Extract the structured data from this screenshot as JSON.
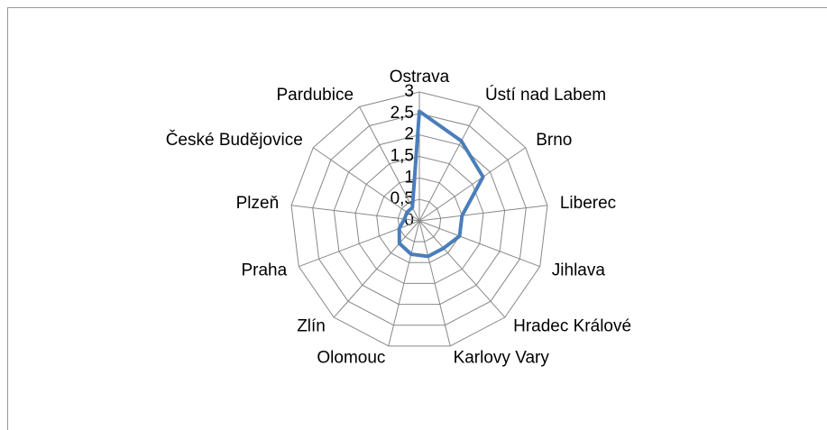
{
  "chart_data": {
    "type": "radar",
    "categories": [
      "Ostrava",
      "Ústí nad Labem",
      "Brno",
      "Liberec",
      "Jihlava",
      "Hradec Králové",
      "Karlovy Vary",
      "Olomouc",
      "Zlín",
      "Praha",
      "Plzeň",
      "České Budějovice",
      "Pardubice"
    ],
    "values": [
      2.55,
      2.1,
      1.8,
      1.0,
      1.0,
      0.85,
      0.85,
      0.8,
      0.7,
      0.5,
      0.35,
      0.35,
      0.35
    ],
    "color": "#4a7ebb",
    "ylim": [
      0,
      3
    ],
    "yticks": [
      0,
      {
        "value": 0.5,
        "label": "0,5"
      },
      1,
      {
        "value": 1.5,
        "label": "1,5"
      },
      2,
      {
        "value": 2.5,
        "label": "2,5"
      },
      3
    ],
    "grid": true
  }
}
